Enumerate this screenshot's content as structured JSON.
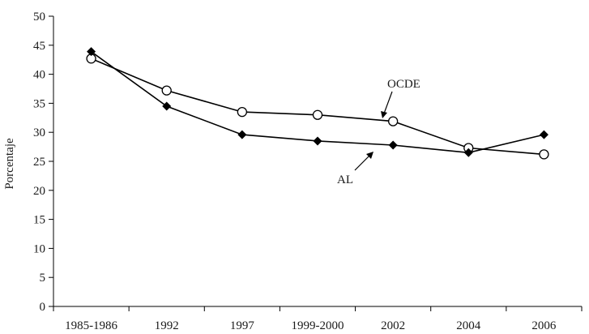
{
  "chart_data": {
    "type": "line",
    "categories": [
      "1985-1986",
      "1992",
      "1997",
      "1999-2000",
      "2002",
      "2004",
      "2006"
    ],
    "ylabel": "Porcentaje",
    "xlabel": "",
    "ylim": [
      0,
      50
    ],
    "yticks": [
      0,
      5,
      10,
      15,
      20,
      25,
      30,
      35,
      40,
      45,
      50
    ],
    "grid": false,
    "series": [
      {
        "name": "OCDE",
        "marker": "open-circle",
        "values": [
          42.7,
          37.2,
          33.5,
          33.0,
          31.9,
          27.3,
          26.2
        ]
      },
      {
        "name": "AL",
        "marker": "filled-diamond",
        "values": [
          43.9,
          34.5,
          29.6,
          28.5,
          27.8,
          26.5,
          29.6
        ]
      }
    ]
  }
}
